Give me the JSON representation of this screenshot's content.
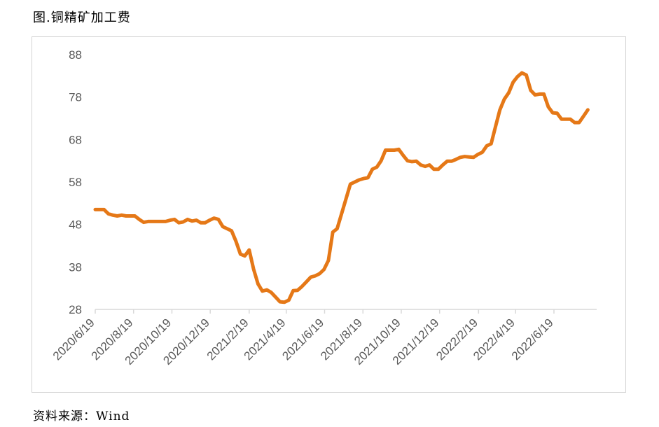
{
  "figure_title": "图.铜精矿加工费",
  "source_label": "资料来源：Wind",
  "colors": {
    "line": "#E57817",
    "axis": "#D9D9D9",
    "text": "#595959",
    "frame": "#D4D4D4"
  },
  "chart_data": {
    "type": "line",
    "title": "",
    "xlabel": "",
    "ylabel": "",
    "ylim": [
      28,
      88
    ],
    "yticks": [
      28,
      38,
      48,
      58,
      68,
      78,
      88
    ],
    "grid": false,
    "legend": "none",
    "x_range": [
      "2020-06-19",
      "2022-08-26"
    ],
    "xtick_labels": [
      "2020/6/19",
      "2020/8/19",
      "2020/10/19",
      "2020/12/19",
      "2021/2/19",
      "2021/4/19",
      "2021/6/19",
      "2021/8/19",
      "2021/10/19",
      "2021/12/19",
      "2022/2/19",
      "2022/4/19",
      "2022/6/19"
    ],
    "xtick_dates": [
      "2020-06-19",
      "2020-08-19",
      "2020-10-19",
      "2020-12-19",
      "2021-02-19",
      "2021-04-19",
      "2021-06-19",
      "2021-08-19",
      "2021-10-19",
      "2021-12-19",
      "2022-02-19",
      "2022-04-19",
      "2022-06-19"
    ],
    "series": [
      {
        "name": "",
        "x": [
          "2020-06-19",
          "2020-06-26",
          "2020-07-03",
          "2020-07-10",
          "2020-07-17",
          "2020-07-24",
          "2020-07-31",
          "2020-08-07",
          "2020-08-14",
          "2020-08-21",
          "2020-08-28",
          "2020-09-04",
          "2020-09-11",
          "2020-09-18",
          "2020-09-25",
          "2020-10-02",
          "2020-10-09",
          "2020-10-16",
          "2020-10-23",
          "2020-10-30",
          "2020-11-06",
          "2020-11-13",
          "2020-11-20",
          "2020-11-27",
          "2020-12-04",
          "2020-12-11",
          "2020-12-18",
          "2020-12-25",
          "2021-01-01",
          "2021-01-08",
          "2021-01-15",
          "2021-01-22",
          "2021-01-29",
          "2021-02-05",
          "2021-02-12",
          "2021-02-19",
          "2021-02-26",
          "2021-03-05",
          "2021-03-12",
          "2021-03-19",
          "2021-03-26",
          "2021-04-02",
          "2021-04-09",
          "2021-04-16",
          "2021-04-23",
          "2021-04-30",
          "2021-05-07",
          "2021-05-14",
          "2021-05-21",
          "2021-05-28",
          "2021-06-04",
          "2021-06-11",
          "2021-06-18",
          "2021-06-25",
          "2021-07-02",
          "2021-07-09",
          "2021-07-16",
          "2021-07-23",
          "2021-07-30",
          "2021-08-06",
          "2021-08-13",
          "2021-08-20",
          "2021-08-27",
          "2021-09-03",
          "2021-09-10",
          "2021-09-17",
          "2021-09-24",
          "2021-10-01",
          "2021-10-08",
          "2021-10-15",
          "2021-10-22",
          "2021-10-29",
          "2021-11-05",
          "2021-11-12",
          "2021-11-19",
          "2021-11-26",
          "2021-12-03",
          "2021-12-10",
          "2021-12-17",
          "2021-12-24",
          "2021-12-31",
          "2022-01-07",
          "2022-01-14",
          "2022-01-21",
          "2022-01-28",
          "2022-02-04",
          "2022-02-11",
          "2022-02-18",
          "2022-02-25",
          "2022-03-04",
          "2022-03-11",
          "2022-03-18",
          "2022-03-25",
          "2022-04-01",
          "2022-04-08",
          "2022-04-15",
          "2022-04-22",
          "2022-04-29",
          "2022-05-06",
          "2022-05-13",
          "2022-05-20",
          "2022-05-27",
          "2022-06-03",
          "2022-06-10",
          "2022-06-17",
          "2022-06-24",
          "2022-07-01",
          "2022-07-08",
          "2022-07-15",
          "2022-07-22",
          "2022-07-29",
          "2022-08-05",
          "2022-08-12"
        ],
        "values": [
          51.5,
          51.5,
          51.5,
          50.5,
          50.2,
          50.0,
          50.2,
          50.0,
          50.0,
          50.0,
          49.2,
          48.5,
          48.7,
          48.7,
          48.7,
          48.7,
          48.7,
          49.0,
          49.2,
          48.4,
          48.6,
          49.2,
          48.8,
          49.0,
          48.4,
          48.4,
          49.0,
          49.5,
          49.2,
          47.5,
          47.0,
          46.5,
          44.0,
          41.0,
          40.6,
          42.0,
          37.5,
          34.0,
          32.3,
          32.6,
          32.0,
          30.9,
          29.8,
          29.7,
          30.2,
          32.4,
          32.5,
          33.4,
          34.5,
          35.6,
          35.9,
          36.4,
          37.4,
          39.5,
          46.2,
          47.0,
          50.5,
          54.0,
          57.5,
          58.0,
          58.5,
          58.8,
          59.0,
          61.0,
          61.5,
          63.0,
          65.5,
          65.5,
          65.5,
          65.7,
          64.3,
          63.0,
          62.8,
          62.9,
          62.0,
          61.7,
          62.0,
          61.0,
          61.0,
          62.0,
          62.9,
          62.9,
          63.3,
          63.8,
          64.0,
          63.9,
          63.8,
          64.5,
          65.0,
          66.5,
          67.0,
          71.0,
          75.0,
          77.5,
          79.0,
          81.5,
          82.8,
          83.7,
          83.2,
          79.6,
          78.5,
          78.7,
          78.7,
          75.7,
          74.3,
          74.2,
          72.8,
          72.8,
          72.8,
          72.0,
          72.0,
          73.5,
          75.0
        ]
      }
    ]
  }
}
